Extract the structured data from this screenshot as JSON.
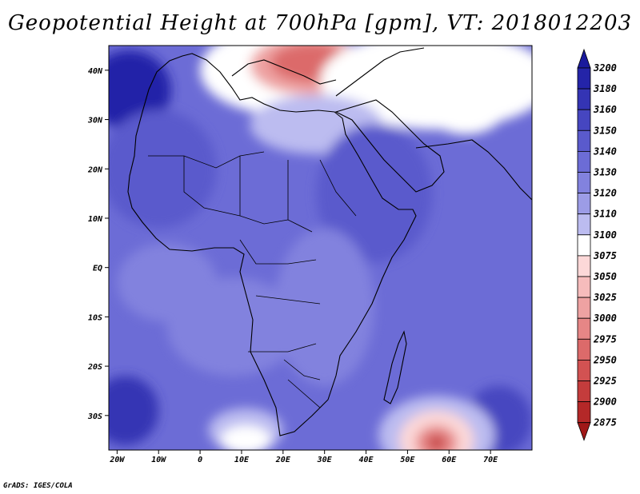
{
  "title": "Geopotential Height at 700hPa [gpm], VT: 2018012203",
  "footer": "GrADS: IGES/COLA",
  "map": {
    "lon_range": [
      -22,
      80
    ],
    "lat_range": [
      -37,
      45
    ],
    "lon_ticks": [
      {
        "value": -20,
        "label": "20W"
      },
      {
        "value": -10,
        "label": "10W"
      },
      {
        "value": 0,
        "label": "0"
      },
      {
        "value": 10,
        "label": "10E"
      },
      {
        "value": 20,
        "label": "20E"
      },
      {
        "value": 30,
        "label": "30E"
      },
      {
        "value": 40,
        "label": "40E"
      },
      {
        "value": 50,
        "label": "50E"
      },
      {
        "value": 60,
        "label": "60E"
      },
      {
        "value": 70,
        "label": "70E"
      }
    ],
    "lat_ticks": [
      {
        "value": 40,
        "label": "40N"
      },
      {
        "value": 30,
        "label": "30N"
      },
      {
        "value": 20,
        "label": "20N"
      },
      {
        "value": 10,
        "label": "10N"
      },
      {
        "value": 0,
        "label": "EQ"
      },
      {
        "value": -10,
        "label": "10S"
      },
      {
        "value": -20,
        "label": "20S"
      },
      {
        "value": -30,
        "label": "30S"
      }
    ],
    "background_level": 3130,
    "features": [
      {
        "lon": -17,
        "lat": 36,
        "rx": 10,
        "ry": 8,
        "level": 3180
      },
      {
        "lon": -10,
        "lat": 20,
        "rx": 14,
        "ry": 12,
        "level": 3140
      },
      {
        "lon": 20,
        "lat": 40,
        "rx": 20,
        "ry": 9,
        "level": 3075
      },
      {
        "lon": 26,
        "lat": 41,
        "rx": 14,
        "ry": 6,
        "level": 3000
      },
      {
        "lon": 27,
        "lat": 41.5,
        "rx": 10,
        "ry": 4,
        "level": 2950
      },
      {
        "lon": 57,
        "lat": 38,
        "rx": 28,
        "ry": 10,
        "level": 3075
      },
      {
        "lon": 64,
        "lat": 33,
        "rx": 10,
        "ry": 6,
        "level": 3075
      },
      {
        "lon": 28,
        "lat": 29,
        "rx": 16,
        "ry": 6,
        "level": 3100
      },
      {
        "lon": 42,
        "lat": 15,
        "rx": 14,
        "ry": 14,
        "level": 3140
      },
      {
        "lon": 30,
        "lat": -8,
        "rx": 12,
        "ry": 16,
        "level": 3120
      },
      {
        "lon": 8,
        "lat": -12,
        "rx": 16,
        "ry": 10,
        "level": 3120
      },
      {
        "lon": -8,
        "lat": -3,
        "rx": 12,
        "ry": 8,
        "level": 3120
      },
      {
        "lon": -18,
        "lat": -29,
        "rx": 8,
        "ry": 7,
        "level": 3160
      },
      {
        "lon": 72,
        "lat": -31,
        "rx": 8,
        "ry": 7,
        "level": 3150
      },
      {
        "lon": 11,
        "lat": -33,
        "rx": 9,
        "ry": 4.5,
        "level": 3100
      },
      {
        "lon": 11,
        "lat": -35,
        "rx": 6,
        "ry": 3,
        "level": 3075
      },
      {
        "lon": 57,
        "lat": -34,
        "rx": 14,
        "ry": 8,
        "level": 3100
      },
      {
        "lon": 57,
        "lat": -35,
        "rx": 9,
        "ry": 6,
        "level": 3050
      },
      {
        "lon": 57,
        "lat": -35.5,
        "rx": 5,
        "ry": 3.5,
        "level": 2975
      },
      {
        "lon": 57,
        "lat": -35.5,
        "rx": 2,
        "ry": 1.5,
        "level": 2900
      }
    ]
  },
  "colorbar": {
    "levels": [
      "3200",
      "3180",
      "3160",
      "3150",
      "3140",
      "3130",
      "3120",
      "3110",
      "3100",
      "3075",
      "3050",
      "3025",
      "3000",
      "2975",
      "2950",
      "2925",
      "2900",
      "2875"
    ],
    "colors": [
      "#1a1a9c",
      "#2424a8",
      "#3434b4",
      "#4646c0",
      "#5a5acc",
      "#6c6cd6",
      "#8282de",
      "#9c9ce6",
      "#bcbcf0",
      "#ffffff",
      "#fcd8d8",
      "#f6bcbc",
      "#eea2a2",
      "#e68686",
      "#dc6a6a",
      "#d25252",
      "#c43c3c",
      "#b42828",
      "#a01818"
    ]
  }
}
